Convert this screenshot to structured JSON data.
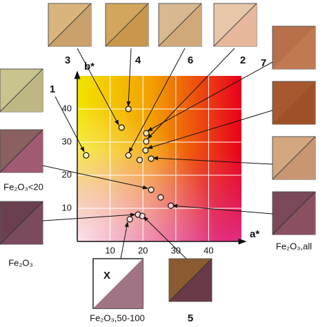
{
  "chart_data": {
    "type": "scatter",
    "x_label": "a*",
    "y_label": "b*",
    "xlim": [
      0,
      50
    ],
    "ylim": [
      0,
      50
    ],
    "xticks": [
      10,
      20,
      30,
      40
    ],
    "yticks": [
      10,
      20,
      30,
      40
    ],
    "grid": true,
    "x": [
      2.7,
      15.6,
      13.5,
      21,
      21,
      20.8,
      15.6,
      19,
      22.5,
      22.5,
      25.4,
      28.5,
      18.5,
      19.8,
      16
    ],
    "values": [
      26,
      40,
      34.4,
      32.7,
      30.2,
      27.5,
      26,
      24.6,
      25,
      15.6,
      13.3,
      10.8,
      8.1,
      7.7,
      6.7
    ],
    "samples": [
      "3",
      "4",
      "6",
      "2",
      "7",
      "1",
      "Fe₂O₃<20",
      "Fe₂O₃",
      "Fe₂O₃,all",
      "X",
      "Fe₂O₃,50-100",
      "5"
    ]
  }
}
